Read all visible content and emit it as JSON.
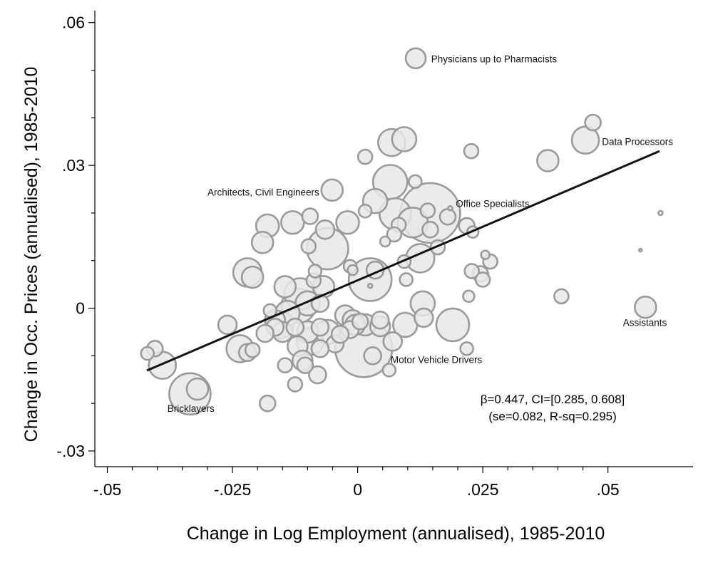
{
  "chart_data": {
    "type": "scatter",
    "xlabel": "Change in Log Employment (annualised), 1985-2010",
    "ylabel": "Change in Occ. Prices (annualised), 1985-2010",
    "xlim": [
      -0.0525,
      0.067
    ],
    "ylim": [
      -0.0333,
      0.0625
    ],
    "x_ticks": [
      {
        "value": -0.05,
        "label": "-.05"
      },
      {
        "value": -0.025,
        "label": "-.025"
      },
      {
        "value": 0,
        "label": "0"
      },
      {
        "value": 0.025,
        "label": ".025"
      },
      {
        "value": 0.05,
        "label": ".05"
      }
    ],
    "y_ticks": [
      {
        "value": -0.03,
        "label": "-.03"
      },
      {
        "value": 0,
        "label": "0"
      },
      {
        "value": 0.03,
        "label": ".03"
      },
      {
        "value": 0.06,
        "label": ".06"
      }
    ],
    "grid": false,
    "fit_line": {
      "x": [
        -0.0421,
        0.0603
      ],
      "y": [
        -0.0131,
        0.033
      ]
    },
    "stats": {
      "line1": "β=0.447, CI=[0.285, 0.608]",
      "line2": "(se=0.082, R-sq=0.295)"
    },
    "labels": [
      {
        "text": "Physicians up to Pharmacists",
        "x": 0.0147,
        "y": 0.0524
      },
      {
        "text": "Data Processors",
        "x": 0.0488,
        "y": 0.035
      },
      {
        "text": "Architects, Civil Engineers",
        "x": -0.03,
        "y": 0.0244
      },
      {
        "text": "Office Specialists",
        "x": 0.0196,
        "y": 0.022
      },
      {
        "text": "Assistants",
        "x": 0.053,
        "y": -0.003
      },
      {
        "text": "Motor Vehicle Drivers",
        "x": 0.0066,
        "y": -0.0108
      },
      {
        "text": "Bricklayers",
        "x": -0.038,
        "y": -0.021
      }
    ],
    "points": [
      {
        "x": 0.0116,
        "y": 0.0525,
        "size": 14
      },
      {
        "x": 0.047,
        "y": 0.039,
        "size": 11
      },
      {
        "x": 0.0455,
        "y": 0.0353,
        "size": 19
      },
      {
        "x": 0.038,
        "y": 0.031,
        "size": 15
      },
      {
        "x": 0.0605,
        "y": 0.02,
        "size": 3
      },
      {
        "x": 0.0565,
        "y": 0.0122,
        "size": 2
      },
      {
        "x": 0.0575,
        "y": 0.0002,
        "size": 15
      },
      {
        "x": 0.0407,
        "y": 0.0025,
        "size": 10
      },
      {
        "x": 0.0068,
        "y": 0.0348,
        "size": 19
      },
      {
        "x": 0.0093,
        "y": 0.0355,
        "size": 17
      },
      {
        "x": 0.0015,
        "y": 0.0318,
        "size": 10
      },
      {
        "x": 0.0227,
        "y": 0.033,
        "size": 10
      },
      {
        "x": -0.0051,
        "y": 0.0248,
        "size": 15
      },
      {
        "x": 0.0065,
        "y": 0.0265,
        "size": 24
      },
      {
        "x": 0.0115,
        "y": 0.0266,
        "size": 9
      },
      {
        "x": 0.0145,
        "y": 0.02,
        "size": 42
      },
      {
        "x": 0.0185,
        "y": 0.021,
        "size": 3
      },
      {
        "x": 0.014,
        "y": 0.0205,
        "size": 10
      },
      {
        "x": 0.0035,
        "y": 0.0225,
        "size": 17
      },
      {
        "x": 0.0075,
        "y": 0.0198,
        "size": 22
      },
      {
        "x": 0.0015,
        "y": 0.0204,
        "size": 9
      },
      {
        "x": 0.011,
        "y": 0.018,
        "size": 21
      },
      {
        "x": 0.018,
        "y": 0.0192,
        "size": 11
      },
      {
        "x": 0.0145,
        "y": 0.0165,
        "size": 11
      },
      {
        "x": 0.0082,
        "y": 0.0175,
        "size": 10
      },
      {
        "x": 0.0218,
        "y": 0.0173,
        "size": 11
      },
      {
        "x": 0.0055,
        "y": 0.014,
        "size": 7
      },
      {
        "x": 0.0073,
        "y": 0.0155,
        "size": 10
      },
      {
        "x": 0.016,
        "y": 0.0128,
        "size": 10
      },
      {
        "x": 0.0125,
        "y": 0.0105,
        "size": 20
      },
      {
        "x": 0.023,
        "y": 0.016,
        "size": 8
      },
      {
        "x": 0.0255,
        "y": 0.0112,
        "size": 6
      },
      {
        "x": 0.0265,
        "y": 0.0098,
        "size": 10
      },
      {
        "x": 0.0228,
        "y": 0.0078,
        "size": 10
      },
      {
        "x": 0.0245,
        "y": 0.0072,
        "size": 11
      },
      {
        "x": 0.025,
        "y": 0.006,
        "size": 10
      },
      {
        "x": 0.0222,
        "y": 0.0025,
        "size": 8
      },
      {
        "x": 0.0097,
        "y": 0.006,
        "size": 9
      },
      {
        "x": 0.0093,
        "y": 0.0098,
        "size": 9
      },
      {
        "x": 0.013,
        "y": 0.001,
        "size": 17
      },
      {
        "x": 0.0132,
        "y": -0.002,
        "size": 13
      },
      {
        "x": 0.019,
        "y": -0.0035,
        "size": 23
      },
      {
        "x": 0.0218,
        "y": -0.0085,
        "size": 9
      },
      {
        "x": 0.0095,
        "y": -0.0035,
        "size": 17
      },
      {
        "x": 0.0045,
        "y": -0.0038,
        "size": 14
      },
      {
        "x": 0.0045,
        "y": -0.0025,
        "size": 12
      },
      {
        "x": 0.007,
        "y": -0.007,
        "size": 13
      },
      {
        "x": 0.0063,
        "y": -0.013,
        "size": 9
      },
      {
        "x": 0.0012,
        "y": -0.0085,
        "size": 40
      },
      {
        "x": 0.003,
        "y": -0.01,
        "size": 12
      },
      {
        "x": 0.0025,
        "y": 0.006,
        "size": 30
      },
      {
        "x": 0.0025,
        "y": 0.0047,
        "size": 3
      },
      {
        "x": 0.0035,
        "y": 0.008,
        "size": 12
      },
      {
        "x": -0.0015,
        "y": 0.0088,
        "size": 9
      },
      {
        "x": -0.001,
        "y": 0.008,
        "size": 7
      },
      {
        "x": -0.006,
        "y": 0.0125,
        "size": 29
      },
      {
        "x": -0.0065,
        "y": 0.0165,
        "size": 13
      },
      {
        "x": -0.002,
        "y": 0.018,
        "size": 16
      },
      {
        "x": -0.0095,
        "y": 0.0193,
        "size": 11
      },
      {
        "x": -0.013,
        "y": 0.018,
        "size": 16
      },
      {
        "x": -0.018,
        "y": 0.0173,
        "size": 16
      },
      {
        "x": -0.019,
        "y": 0.0138,
        "size": 15
      },
      {
        "x": -0.0098,
        "y": 0.013,
        "size": 10
      },
      {
        "x": -0.0085,
        "y": 0.0078,
        "size": 9
      },
      {
        "x": -0.0088,
        "y": 0.0058,
        "size": 10
      },
      {
        "x": -0.022,
        "y": 0.0075,
        "size": 20
      },
      {
        "x": -0.021,
        "y": 0.0065,
        "size": 15
      },
      {
        "x": -0.0145,
        "y": 0.0045,
        "size": 15
      },
      {
        "x": -0.0115,
        "y": 0.003,
        "size": 22
      },
      {
        "x": -0.0118,
        "y": 0.0005,
        "size": 24
      },
      {
        "x": -0.01,
        "y": 0.001,
        "size": 17
      },
      {
        "x": -0.0068,
        "y": 0.0045,
        "size": 15
      },
      {
        "x": -0.0075,
        "y": 0.001,
        "size": 12
      },
      {
        "x": -0.0175,
        "y": -0.0005,
        "size": 9
      },
      {
        "x": -0.0165,
        "y": -0.0025,
        "size": 14
      },
      {
        "x": -0.0155,
        "y": -0.0035,
        "size": 19
      },
      {
        "x": -0.014,
        "y": -0.001,
        "size": 17
      },
      {
        "x": -0.0125,
        "y": -0.004,
        "size": 12
      },
      {
        "x": -0.01,
        "y": -0.005,
        "size": 15
      },
      {
        "x": -0.0095,
        "y": -0.007,
        "size": 19
      },
      {
        "x": -0.0075,
        "y": -0.004,
        "size": 12
      },
      {
        "x": -0.006,
        "y": -0.005,
        "size": 17
      },
      {
        "x": -0.0045,
        "y": -0.0075,
        "size": 12
      },
      {
        "x": -0.0165,
        "y": -0.004,
        "size": 12
      },
      {
        "x": -0.015,
        "y": -0.005,
        "size": 14
      },
      {
        "x": -0.0185,
        "y": -0.0053,
        "size": 12
      },
      {
        "x": -0.0025,
        "y": -0.0015,
        "size": 14
      },
      {
        "x": -0.001,
        "y": -0.0025,
        "size": 14
      },
      {
        "x": -0.0005,
        "y": -0.0035,
        "size": 14
      },
      {
        "x": -0.0015,
        "y": -0.0045,
        "size": 12
      },
      {
        "x": 0.0005,
        "y": -0.0028,
        "size": 11
      },
      {
        "x": 0.0015,
        "y": -0.0035,
        "size": 15
      },
      {
        "x": -0.0035,
        "y": -0.0055,
        "size": 12
      },
      {
        "x": -0.0075,
        "y": -0.0085,
        "size": 12
      },
      {
        "x": -0.012,
        "y": -0.008,
        "size": 14
      },
      {
        "x": -0.011,
        "y": -0.011,
        "size": 14
      },
      {
        "x": -0.0105,
        "y": -0.012,
        "size": 11
      },
      {
        "x": -0.008,
        "y": -0.014,
        "size": 12
      },
      {
        "x": -0.0125,
        "y": -0.016,
        "size": 10
      },
      {
        "x": -0.0145,
        "y": -0.012,
        "size": 10
      },
      {
        "x": -0.018,
        "y": -0.02,
        "size": 11
      },
      {
        "x": -0.026,
        "y": -0.0035,
        "size": 13
      },
      {
        "x": -0.0235,
        "y": -0.0085,
        "size": 19
      },
      {
        "x": -0.022,
        "y": -0.0093,
        "size": 12
      },
      {
        "x": -0.021,
        "y": -0.0088,
        "size": 10
      },
      {
        "x": -0.039,
        "y": -0.012,
        "size": 19
      },
      {
        "x": -0.0405,
        "y": -0.0085,
        "size": 11
      },
      {
        "x": -0.042,
        "y": -0.0095,
        "size": 9
      },
      {
        "x": -0.0335,
        "y": -0.018,
        "size": 29
      },
      {
        "x": -0.032,
        "y": -0.017,
        "size": 15
      }
    ]
  }
}
